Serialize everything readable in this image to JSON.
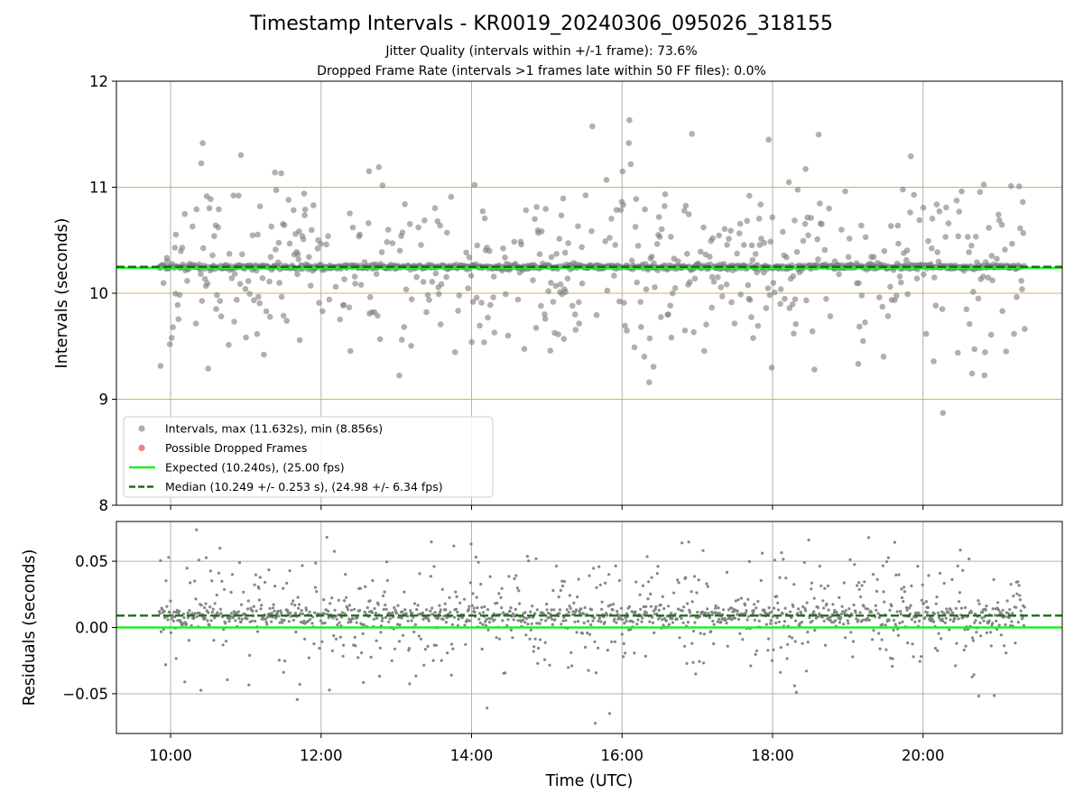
{
  "title": "Timestamp Intervals - KR0019_20240306_095026_318155",
  "subtitle_1": "Jitter Quality (intervals within +/-1 frame): 73.6%",
  "subtitle_2": "Dropped Frame Rate (intervals >1 frames late within 50 FF files): 0.0%",
  "colors": {
    "points": "#808080",
    "dropped": "#ff4a4a",
    "expected": "#22ee22",
    "median": "#1a6e1a",
    "hline": "#d7b05a",
    "grid": "#b0b0b0"
  },
  "chart_data": [
    {
      "type": "scatter",
      "panel": "intervals",
      "ylabel": "Intervals (seconds)",
      "xlabel": "",
      "ylim": [
        8,
        12
      ],
      "xlim_hours": [
        9.28,
        21.85
      ],
      "yticks": [
        8,
        9,
        10,
        11,
        12
      ],
      "xticks": [
        "10:00",
        "12:00",
        "14:00",
        "16:00",
        "18:00",
        "20:00"
      ],
      "x_tick_hours": [
        10,
        12,
        14,
        16,
        18,
        20
      ],
      "grid": true,
      "reference_lines": [
        9,
        10,
        11
      ],
      "expected": 10.24,
      "median": 10.249,
      "legend_position": "lower-left",
      "legend": [
        {
          "label": "Intervals, max (11.632s), min (8.856s)",
          "kind": "marker",
          "color": "#9a9a9a"
        },
        {
          "label": "Possible Dropped Frames",
          "kind": "marker",
          "color": "#ff5a5a"
        },
        {
          "label": "Expected (10.240s), (25.00 fps)",
          "kind": "line",
          "color": "#22ee22"
        },
        {
          "label": "Median (10.249 +/- 0.253 s), (24.98 +/- 6.34 fps)",
          "kind": "dashed",
          "color": "#1a6e1a"
        }
      ],
      "x_range_hours": [
        9.85,
        21.35
      ],
      "n_points": 1400,
      "core_fraction": 0.6,
      "core_value": 10.249,
      "core_spread": 0.012,
      "outlier_spread": 0.45,
      "max": 11.632,
      "min": 8.856
    },
    {
      "type": "scatter",
      "panel": "residuals",
      "ylabel": "Residuals (seconds)",
      "xlabel": "Time (UTC)",
      "ylim": [
        -0.08,
        0.08
      ],
      "yticks": [
        0.05,
        0.0,
        -0.05
      ],
      "ytick_labels": [
        "0.05",
        "0.00",
        "−0.05"
      ],
      "xlim_hours": [
        9.28,
        21.85
      ],
      "xticks": [
        "10:00",
        "12:00",
        "14:00",
        "16:00",
        "18:00",
        "20:00"
      ],
      "x_tick_hours": [
        10,
        12,
        14,
        16,
        18,
        20
      ],
      "grid": true,
      "expected": 0.0,
      "median": 0.009,
      "x_range_hours": [
        9.85,
        21.35
      ],
      "n_points": 1400,
      "core_fraction": 0.55,
      "core_value": 0.009,
      "core_spread": 0.004,
      "outlier_spread": 0.025
    }
  ]
}
